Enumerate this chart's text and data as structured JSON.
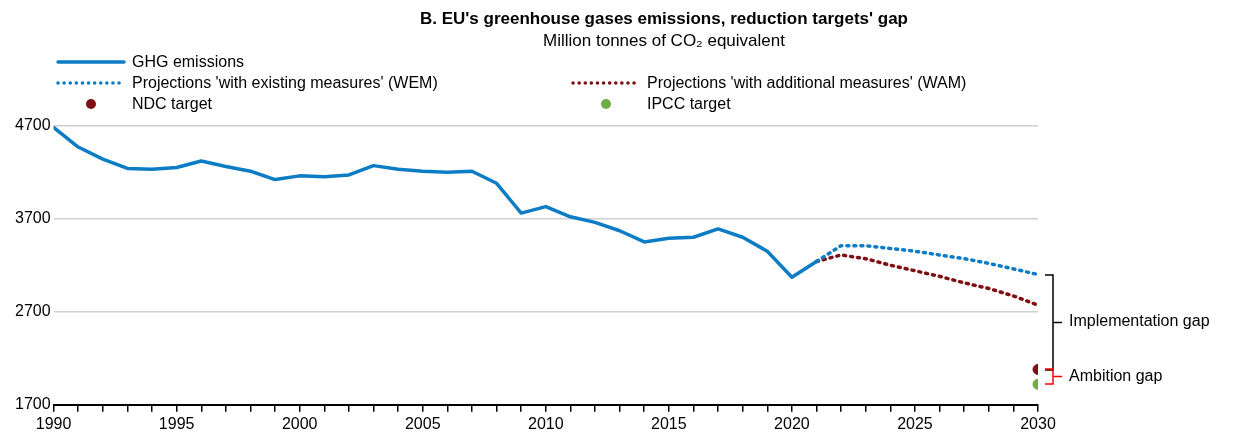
{
  "chart_data": {
    "type": "line",
    "title": "B. EU's greenhouse gases emissions, reduction targets' gap",
    "subtitle": "Million tonnes of CO₂ equivalent",
    "series": [
      {
        "name": "GHG emissions",
        "color": "#0c7cc4",
        "line_style": "solid",
        "x": [
          1990,
          1991,
          1992,
          1993,
          1994,
          1995,
          1996,
          1997,
          1998,
          1999,
          2000,
          2001,
          2002,
          2003,
          2004,
          2005,
          2006,
          2007,
          2008,
          2009,
          2010,
          2011,
          2012,
          2013,
          2014,
          2015,
          2016,
          2017,
          2018,
          2019,
          2020,
          2021
        ],
        "values": [
          4680,
          4470,
          4340,
          4240,
          4230,
          4250,
          4320,
          4260,
          4210,
          4120,
          4160,
          4150,
          4170,
          4270,
          4230,
          4210,
          4200,
          4210,
          4080,
          3760,
          3830,
          3720,
          3660,
          3570,
          3450,
          3490,
          3500,
          3590,
          3500,
          3350,
          3070,
          3240
        ]
      },
      {
        "name": "Projections 'with existing measures' (WEM)",
        "color": "#0c7cc4",
        "line_style": "dotted",
        "x": [
          2021,
          2022,
          2023,
          2024,
          2025,
          2026,
          2027,
          2028,
          2029,
          2030
        ],
        "values": [
          3240,
          3410,
          3410,
          3380,
          3350,
          3310,
          3270,
          3220,
          3160,
          3100
        ]
      },
      {
        "name": "Projections 'with additional measures' (WAM)",
        "color": "#7f0f13",
        "line_style": "dotted",
        "x": [
          2021,
          2022,
          2023,
          2024,
          2025,
          2026,
          2027,
          2028,
          2029,
          2030
        ],
        "values": [
          3240,
          3310,
          3270,
          3200,
          3140,
          3080,
          3010,
          2950,
          2870,
          2770
        ]
      },
      {
        "name": "NDC target",
        "type": "scatter",
        "marker": "circle",
        "color": "#7f0f13",
        "x": [
          2030
        ],
        "values": [
          2080
        ]
      },
      {
        "name": "IPCC target",
        "type": "scatter",
        "marker": "circle",
        "color": "#70ad47",
        "x": [
          2030
        ],
        "values": [
          1920
        ]
      }
    ],
    "xlim": [
      1990,
      2030
    ],
    "xticks": [
      1990,
      {
        "value": 1991,
        "label": null
      },
      {
        "value": 1992,
        "label": null
      },
      {
        "value": 1993,
        "label": null
      },
      {
        "value": 1994,
        "label": null
      },
      1995,
      {
        "value": 1996,
        "label": null
      },
      {
        "value": 1997,
        "label": null
      },
      {
        "value": 1998,
        "label": null
      },
      {
        "value": 1999,
        "label": null
      },
      2000,
      {
        "value": 2001,
        "label": null
      },
      {
        "value": 2002,
        "label": null
      },
      {
        "value": 2003,
        "label": null
      },
      {
        "value": 2004,
        "label": null
      },
      2005,
      {
        "value": 2006,
        "label": null
      },
      {
        "value": 2007,
        "label": null
      },
      {
        "value": 2008,
        "label": null
      },
      {
        "value": 2009,
        "label": null
      },
      2010,
      {
        "value": 2011,
        "label": null
      },
      {
        "value": 2012,
        "label": null
      },
      {
        "value": 2013,
        "label": null
      },
      {
        "value": 2014,
        "label": null
      },
      2015,
      {
        "value": 2016,
        "label": null
      },
      {
        "value": 2017,
        "label": null
      },
      {
        "value": 2018,
        "label": null
      },
      {
        "value": 2019,
        "label": null
      },
      2020,
      {
        "value": 2021,
        "label": null
      },
      {
        "value": 2022,
        "label": null
      },
      {
        "value": 2023,
        "label": null
      },
      {
        "value": 2024,
        "label": null
      },
      2025,
      {
        "value": 2026,
        "label": null
      },
      {
        "value": 2027,
        "label": null
      },
      {
        "value": 2028,
        "label": null
      },
      {
        "value": 2029,
        "label": null
      },
      2030
    ],
    "ylim": [
      1700,
      4700
    ],
    "yticks": [
      1700,
      2700,
      3700,
      4700
    ],
    "grid": "y",
    "legend": "top left",
    "annotations": [
      "Implementation gap",
      "Ambition gap"
    ]
  }
}
